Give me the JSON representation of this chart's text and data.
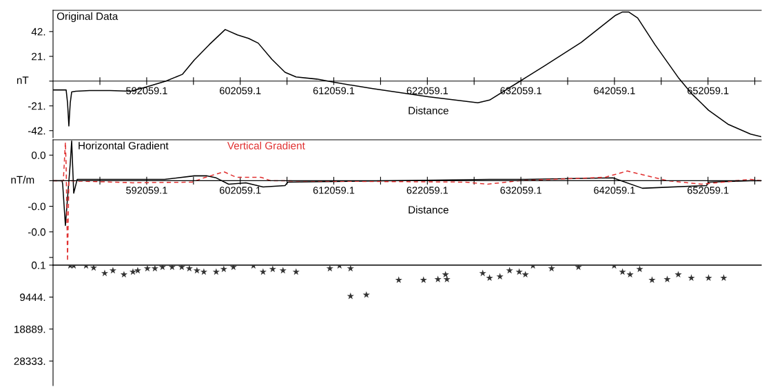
{
  "chart_data": [
    {
      "type": "line",
      "title": "Original Data",
      "xlabel": "Distance",
      "ylabel": "nT",
      "color": "#000000",
      "line_style": "solid",
      "x": [
        582050,
        583450,
        583600,
        583740,
        583890,
        584040,
        584480,
        585950,
        588160,
        590370,
        591910,
        594120,
        595890,
        597140,
        598760,
        600450,
        601770,
        602950,
        603980,
        605450,
        606850,
        608030,
        610240,
        612230,
        616130,
        622160,
        627460,
        628710,
        632100,
        634530,
        638500,
        642180,
        642920,
        643580,
        644540,
        646380,
        648950,
        650280,
        652120,
        654250,
        656610,
        657710
      ],
      "values": [
        -7.5,
        -7.5,
        -18.4,
        -38,
        -18.4,
        -9.2,
        -8.6,
        -8,
        -8,
        -8.6,
        -5.2,
        0,
        5.8,
        17.8,
        31,
        43.7,
        39.1,
        36.2,
        32.2,
        18.4,
        7.5,
        3.5,
        1.7,
        -1.2,
        -6.3,
        -13.2,
        -18.4,
        -16.1,
        0.6,
        12.7,
        32.8,
        55.8,
        58.6,
        58.6,
        53.5,
        31,
        2.3,
        -10.4,
        -24.7,
        -36.8,
        -44.9,
        -47
      ],
      "xlim": [
        582050,
        657750
      ],
      "ylim": [
        -48,
        60
      ],
      "xticks": [
        {
          "value": 587059.1,
          "label": null
        },
        592059.1,
        {
          "value": 597059.1,
          "label": null
        },
        602059.1,
        {
          "value": 607059.1,
          "label": null
        },
        612059.1,
        {
          "value": 617059.1,
          "label": null
        },
        622059.1,
        {
          "value": 627059.1,
          "label": null
        },
        632059.1,
        {
          "value": 637059.1,
          "label": null
        },
        642059.1,
        {
          "value": 647059.1,
          "label": null
        },
        652059.1,
        {
          "value": 657059.1,
          "label": null
        }
      ],
      "yticks": [
        {
          "value": 42,
          "label": "42."
        },
        {
          "value": 21,
          "label": "21."
        },
        {
          "value": 0,
          "label": null
        },
        {
          "value": -21,
          "label": "-21."
        },
        {
          "value": -42,
          "label": "-42."
        }
      ]
    },
    {
      "type": "line",
      "xlabel": "Distance",
      "ylabel": "nT/m",
      "series": [
        {
          "name": "Horizontal Gradient",
          "color": "#000000",
          "line_style": "solid",
          "x": [
            582050,
            583010,
            583080,
            583370,
            583890,
            584040,
            584260,
            584630,
            590590,
            593970,
            597140,
            598460,
            599490,
            600820,
            602660,
            604500,
            606850,
            607150,
            628710,
            631880,
            641890,
            645050,
            651900,
            652120,
            656610,
            657710
          ],
          "values": [
            0,
            0,
            -0.0027,
            -0.035,
            0.0135,
            0.031,
            -0.0097,
            0.001,
            0.001,
            0.001,
            0.0038,
            0.0038,
            0.0022,
            -0.0027,
            -0.0016,
            -0.0049,
            -0.0038,
            -0.0011,
            0.001,
            0.001,
            0.0022,
            -0.0059,
            -0.0038,
            -0.0011,
            0,
            0
          ]
        },
        {
          "name": "Vertical Gradient",
          "color": "#e03030",
          "line_style": "dashed",
          "x": [
            582050,
            583150,
            583370,
            583450,
            583600,
            583740,
            590590,
            596920,
            598170,
            600300,
            601630,
            604280,
            605310,
            626140,
            628490,
            631880,
            641080,
            643430,
            645570,
            647700,
            651380,
            652930,
            656610,
            657710
          ],
          "values": [
            0,
            0,
            0.03,
            0.012,
            -0.063,
            0,
            -0.0016,
            -0.0011,
            0.0022,
            0.007,
            0.0027,
            0.0027,
            0,
            -0.0011,
            -0.0027,
            0,
            0.0027,
            0.0076,
            0.0038,
            0,
            -0.0027,
            -0.0016,
            0.0011,
            0
          ]
        }
      ],
      "xlim": [
        582050,
        657750
      ],
      "ylim": [
        -0.066,
        0.032
      ],
      "xticks": [
        {
          "value": 587059.1,
          "label": null
        },
        592059.1,
        {
          "value": 597059.1,
          "label": null
        },
        602059.1,
        {
          "value": 607059.1,
          "label": null
        },
        612059.1,
        {
          "value": 617059.1,
          "label": null
        },
        622059.1,
        {
          "value": 627059.1,
          "label": null
        },
        632059.1,
        {
          "value": 637059.1,
          "label": null
        },
        642059.1,
        {
          "value": 647059.1,
          "label": null
        },
        652059.1,
        {
          "value": 657059.1,
          "label": null
        }
      ],
      "yticks": [
        {
          "value": 0.02,
          "label": "0.0"
        },
        {
          "value": 0,
          "label": null
        },
        {
          "value": -0.02,
          "label": "-0.0"
        },
        {
          "value": -0.04,
          "label": "-0.0"
        },
        {
          "value": -0.06,
          "label": null
        }
      ]
    },
    {
      "type": "scatter",
      "color": "#333333",
      "marker": "star",
      "x": [
        583890,
        584260,
        585580,
        586390,
        587570,
        588450,
        589630,
        590590,
        591100,
        592130,
        592940,
        593750,
        594780,
        595810,
        596620,
        597430,
        598170,
        599490,
        600300,
        601330,
        603470,
        604500,
        605530,
        606630,
        608030,
        611640,
        612670,
        613850,
        613850,
        615540,
        619000,
        621650,
        623190,
        624000,
        624150,
        627980,
        628710,
        629820,
        630850,
        631880,
        632540,
        633350,
        635340,
        638210,
        642030,
        642920,
        643730,
        644760,
        646080,
        647700,
        648880,
        650280,
        652120,
        653740
      ],
      "values": [
        200,
        200,
        200,
        800,
        2400,
        1600,
        2800,
        2000,
        1600,
        1000,
        1000,
        600,
        600,
        600,
        1000,
        1600,
        2000,
        2000,
        1200,
        600,
        200,
        2000,
        1200,
        1600,
        2000,
        1000,
        200,
        1000,
        9200,
        8800,
        4400,
        4400,
        4200,
        2800,
        4200,
        2400,
        3800,
        3400,
        1600,
        2000,
        2800,
        200,
        1000,
        600,
        200,
        2000,
        2800,
        1200,
        4400,
        4200,
        2800,
        3800,
        3800,
        3800
      ],
      "xlim": [
        582050,
        657750
      ],
      "ylim": [
        35600,
        0.1
      ],
      "yticks": [
        {
          "value": 0.1,
          "label": "0.1"
        },
        {
          "value": 9444,
          "label": "9444."
        },
        {
          "value": 18889,
          "label": "18889."
        },
        {
          "value": 28333,
          "label": "28333."
        }
      ]
    }
  ]
}
